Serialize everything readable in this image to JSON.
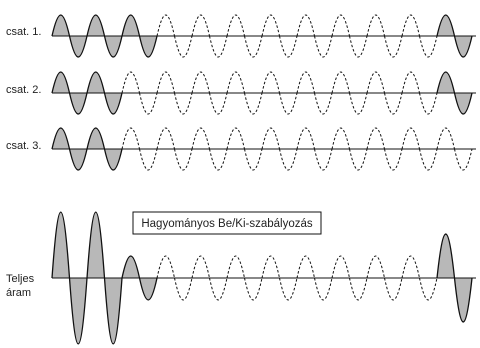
{
  "diagram": {
    "title": "Hagyományos Be/Ki-szabályozás",
    "channels": [
      {
        "label": "csat. 1.",
        "active_cycles_start": 3,
        "active_cycles_end": 1,
        "total_cycles": 12
      },
      {
        "label": "csat. 2.",
        "active_cycles_start": 2,
        "active_cycles_end": 1,
        "total_cycles": 12
      },
      {
        "label": "csat. 3.",
        "active_cycles_start": 2,
        "active_cycles_end": 0,
        "total_cycles": 12
      }
    ],
    "total": {
      "label_line1": "Teljes",
      "label_line2": "áram",
      "cycle_amplitudes": [
        3,
        3,
        1,
        0,
        0,
        0,
        0,
        0,
        0,
        0,
        0,
        2
      ],
      "dashed_amplitude": 1
    }
  },
  "colors": {
    "fill": "#b8b8b8",
    "stroke": "#111111",
    "background": "#ffffff"
  }
}
